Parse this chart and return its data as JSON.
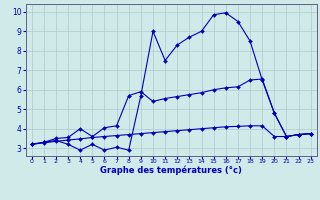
{
  "title": "Graphe des températures (°c)",
  "bg_color": "#d0eaea",
  "line_color": "#0000bb",
  "grid_color": "#aacccc",
  "xlim_min": -0.5,
  "xlim_max": 23.5,
  "ylim_min": 2.6,
  "ylim_max": 10.4,
  "xticks": [
    0,
    1,
    2,
    3,
    4,
    5,
    6,
    7,
    8,
    9,
    10,
    11,
    12,
    13,
    14,
    15,
    16,
    17,
    18,
    19,
    20,
    21,
    22,
    23
  ],
  "yticks": [
    3,
    4,
    5,
    6,
    7,
    8,
    9,
    10
  ],
  "series1_x": [
    0,
    1,
    2,
    3,
    4,
    5,
    6,
    7,
    8,
    9,
    10,
    11,
    12,
    13,
    14,
    15,
    16,
    17,
    18,
    19,
    20,
    21,
    22,
    23
  ],
  "series1_y": [
    3.2,
    3.3,
    3.4,
    3.2,
    2.9,
    3.2,
    2.9,
    3.05,
    2.9,
    5.7,
    9.0,
    7.5,
    8.3,
    8.7,
    9.0,
    9.85,
    9.95,
    9.5,
    8.5,
    6.5,
    4.8,
    3.6,
    3.7,
    3.75
  ],
  "series2_x": [
    0,
    1,
    2,
    3,
    4,
    5,
    6,
    7,
    8,
    9,
    10,
    11,
    12,
    13,
    14,
    15,
    16,
    17,
    18,
    19,
    20,
    21,
    22,
    23
  ],
  "series2_y": [
    3.2,
    3.3,
    3.5,
    3.55,
    4.0,
    3.6,
    4.05,
    4.15,
    5.7,
    5.9,
    5.4,
    5.55,
    5.65,
    5.75,
    5.85,
    6.0,
    6.1,
    6.15,
    6.5,
    6.55,
    4.8,
    3.6,
    3.7,
    3.75
  ],
  "series3_x": [
    0,
    1,
    2,
    3,
    4,
    5,
    6,
    7,
    8,
    9,
    10,
    11,
    12,
    13,
    14,
    15,
    16,
    17,
    18,
    19,
    20,
    21,
    22,
    23
  ],
  "series3_y": [
    3.2,
    3.28,
    3.35,
    3.42,
    3.48,
    3.55,
    3.6,
    3.65,
    3.7,
    3.75,
    3.8,
    3.85,
    3.9,
    3.95,
    4.0,
    4.05,
    4.1,
    4.12,
    4.15,
    4.15,
    3.6,
    3.6,
    3.7,
    3.75
  ]
}
